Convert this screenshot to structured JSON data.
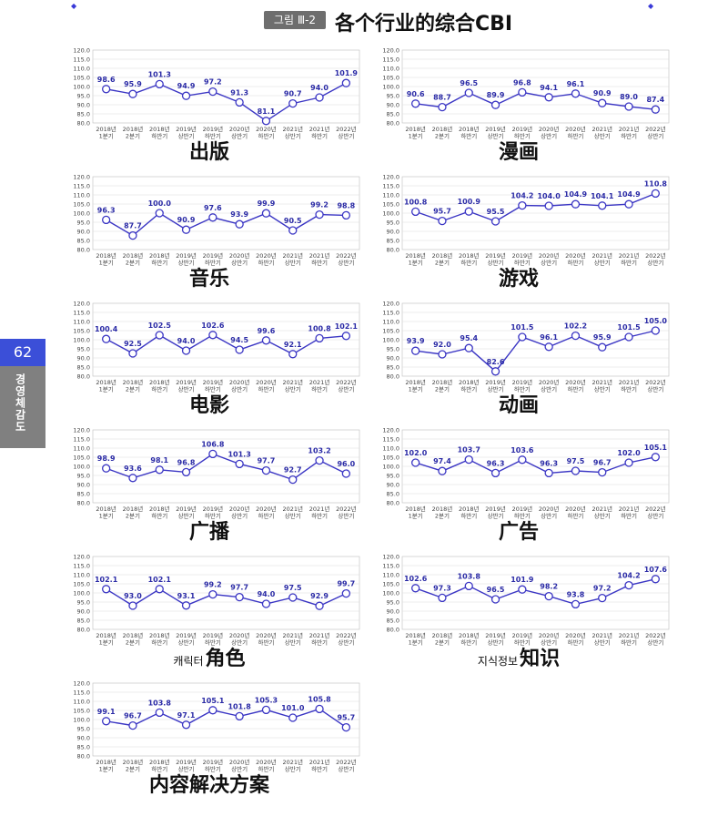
{
  "header": {
    "badge": "그림 Ⅲ-2",
    "title": "各个行业的综合CBI",
    "top_marks": [
      "◆",
      "◆"
    ]
  },
  "side_tab": {
    "page_number": "62",
    "label": "경영체감도",
    "accent_color": "#3b4fd8"
  },
  "style": {
    "line_color": "#3b36c4",
    "marker_fill": "#ffffff",
    "grid_color": "#dcdcdc"
  },
  "chart_data": [
    {
      "type": "line",
      "title": "出版",
      "title_prefix": "",
      "categories": [
        "2018년 1분기",
        "2018년 2분기",
        "2018년 하반기",
        "2019년 상반기",
        "2019년 하반기",
        "2020년 상반기",
        "2020년 하반기",
        "2021년 상반기",
        "2021년 하반기",
        "2022년 상반기"
      ],
      "values": [
        98.6,
        95.9,
        101.3,
        94.9,
        97.2,
        91.3,
        81.1,
        90.7,
        94.0,
        101.9
      ],
      "labels": [
        "98.6",
        "95.9",
        "101.3",
        "94.9",
        "97.2",
        "91.3",
        "81.1",
        "90.7",
        "94.0",
        "101.9"
      ],
      "ylim": [
        80,
        120
      ],
      "yticks": [
        "80.0",
        "85.0",
        "90.0",
        "95.0",
        "100.0",
        "105.0",
        "110.0",
        "115.0",
        "120.0"
      ],
      "grid": true
    },
    {
      "type": "line",
      "title": "漫画",
      "title_prefix": "",
      "categories": [
        "2018년 1분기",
        "2018년 2분기",
        "2018년 하반기",
        "2019년 상반기",
        "2019년 하반기",
        "2020년 상반기",
        "2020년 하반기",
        "2021년 상반기",
        "2021년 하반기",
        "2022년 상반기"
      ],
      "values": [
        90.6,
        88.7,
        96.5,
        89.9,
        96.8,
        94.1,
        96.1,
        90.9,
        89.0,
        87.4
      ],
      "labels": [
        "90.6",
        "88.7",
        "96.5",
        "89.9",
        "96.8",
        "94.1",
        "96.1",
        "90.9",
        "89.0",
        "87.4"
      ],
      "ylim": [
        80,
        120
      ],
      "yticks": [
        "80.0",
        "85.0",
        "90.0",
        "95.0",
        "100.0",
        "105.0",
        "110.0",
        "115.0",
        "120.0"
      ],
      "grid": true
    },
    {
      "type": "line",
      "title": "音乐",
      "title_prefix": "",
      "categories": [
        "2018년 1분기",
        "2018년 2분기",
        "2018년 하반기",
        "2019년 상반기",
        "2019년 하반기",
        "2020년 상반기",
        "2020년 하반기",
        "2021년 상반기",
        "2021년 하반기",
        "2022년 상반기"
      ],
      "values": [
        96.3,
        87.7,
        100.0,
        90.9,
        97.6,
        93.9,
        99.9,
        90.5,
        99.2,
        98.8
      ],
      "labels": [
        "96.3",
        "87.7",
        "100.0",
        "90.9",
        "97.6",
        "93.9",
        "99.9",
        "90.5",
        "99.2",
        "98.8"
      ],
      "ylim": [
        80,
        120
      ],
      "yticks": [
        "80.0",
        "85.0",
        "90.0",
        "95.0",
        "100.0",
        "105.0",
        "110.0",
        "115.0",
        "120.0"
      ],
      "grid": true
    },
    {
      "type": "line",
      "title": "游戏",
      "title_prefix": "",
      "categories": [
        "2018년 1분기",
        "2018년 2분기",
        "2018년 하반기",
        "2019년 상반기",
        "2019년 하반기",
        "2020년 상반기",
        "2020년 하반기",
        "2021년 상반기",
        "2021년 하반기",
        "2022년 상반기"
      ],
      "values": [
        100.8,
        95.7,
        100.9,
        95.5,
        104.2,
        104.0,
        104.9,
        104.1,
        104.9,
        110.8
      ],
      "labels": [
        "100.8",
        "95.7",
        "100.9",
        "95.5",
        "104.2",
        "104.0",
        "104.9",
        "104.1",
        "104.9",
        "110.8"
      ],
      "ylim": [
        80,
        120
      ],
      "yticks": [
        "80.0",
        "85.0",
        "90.0",
        "95.0",
        "100.0",
        "105.0",
        "110.0",
        "115.0",
        "120.0"
      ],
      "grid": true
    },
    {
      "type": "line",
      "title": "电影",
      "title_prefix": "",
      "categories": [
        "2018년 1분기",
        "2018년 2분기",
        "2018년 하반기",
        "2019년 상반기",
        "2019년 하반기",
        "2020년 상반기",
        "2020년 하반기",
        "2021년 상반기",
        "2021년 하반기",
        "2022년 상반기"
      ],
      "values": [
        100.4,
        92.5,
        102.5,
        94.0,
        102.6,
        94.5,
        99.6,
        92.1,
        100.8,
        102.1
      ],
      "labels": [
        "100.4",
        "92.5",
        "102.5",
        "94.0",
        "102.6",
        "94.5",
        "99.6",
        "92.1",
        "100.8",
        "102.1"
      ],
      "ylim": [
        80,
        120
      ],
      "yticks": [
        "80.0",
        "85.0",
        "90.0",
        "95.0",
        "100.0",
        "105.0",
        "110.0",
        "115.0",
        "120.0"
      ],
      "grid": true
    },
    {
      "type": "line",
      "title": "动画",
      "title_prefix": "",
      "categories": [
        "2018년 1분기",
        "2018년 2분기",
        "2018년 하반기",
        "2019년 상반기",
        "2019년 하반기",
        "2020년 상반기",
        "2020년 하반기",
        "2021년 상반기",
        "2021년 하반기",
        "2022년 상반기"
      ],
      "values": [
        93.9,
        92.0,
        95.4,
        82.6,
        101.5,
        96.1,
        102.2,
        95.9,
        101.5,
        105.0
      ],
      "labels": [
        "93.9",
        "92.0",
        "95.4",
        "82.6",
        "101.5",
        "96.1",
        "102.2",
        "95.9",
        "101.5",
        "105.0"
      ],
      "ylim": [
        80,
        120
      ],
      "yticks": [
        "80.0",
        "85.0",
        "90.0",
        "95.0",
        "100.0",
        "105.0",
        "110.0",
        "115.0",
        "120.0"
      ],
      "grid": true
    },
    {
      "type": "line",
      "title": "广播",
      "title_prefix": "",
      "categories": [
        "2018년 1분기",
        "2018년 2분기",
        "2018년 하반기",
        "2019년 상반기",
        "2019년 하반기",
        "2020년 상반기",
        "2020년 하반기",
        "2021년 상반기",
        "2021년 하반기",
        "2022년 상반기"
      ],
      "values": [
        98.9,
        93.6,
        98.1,
        96.8,
        106.8,
        101.3,
        97.7,
        92.7,
        103.2,
        96.0
      ],
      "labels": [
        "98.9",
        "93.6",
        "98.1",
        "96.8",
        "106.8",
        "101.3",
        "97.7",
        "92.7",
        "103.2",
        "96.0"
      ],
      "ylim": [
        80,
        120
      ],
      "yticks": [
        "80.0",
        "85.0",
        "90.0",
        "95.0",
        "100.0",
        "105.0",
        "110.0",
        "115.0",
        "120.0"
      ],
      "grid": true
    },
    {
      "type": "line",
      "title": "广告",
      "title_prefix": "",
      "categories": [
        "2018년 1분기",
        "2018년 2분기",
        "2018년 하반기",
        "2019년 상반기",
        "2019년 하반기",
        "2020년 상반기",
        "2020년 하반기",
        "2021년 상반기",
        "2021년 하반기",
        "2022년 상반기"
      ],
      "values": [
        102.0,
        97.4,
        103.7,
        96.3,
        103.6,
        96.3,
        97.5,
        96.7,
        102.0,
        105.1
      ],
      "labels": [
        "102.0",
        "97.4",
        "103.7",
        "96.3",
        "103.6",
        "96.3",
        "97.5",
        "96.7",
        "102.0",
        "105.1"
      ],
      "ylim": [
        80,
        120
      ],
      "yticks": [
        "80.0",
        "85.0",
        "90.0",
        "95.0",
        "100.0",
        "105.0",
        "110.0",
        "115.0",
        "120.0"
      ],
      "grid": true
    },
    {
      "type": "line",
      "title": "角色",
      "title_prefix": "캐릭터",
      "categories": [
        "2018년 1분기",
        "2018년 2분기",
        "2018년 하반기",
        "2019년 상반기",
        "2019년 하반기",
        "2020년 상반기",
        "2020년 하반기",
        "2021년 상반기",
        "2021년 하반기",
        "2022년 상반기"
      ],
      "values": [
        102.1,
        93.0,
        102.1,
        93.1,
        99.2,
        97.7,
        94.0,
        97.5,
        92.9,
        99.7
      ],
      "labels": [
        "102.1",
        "93.0",
        "102.1",
        "93.1",
        "99.2",
        "97.7",
        "94.0",
        "97.5",
        "92.9",
        "99.7"
      ],
      "ylim": [
        80,
        120
      ],
      "yticks": [
        "80.0",
        "85.0",
        "90.0",
        "95.0",
        "100.0",
        "105.0",
        "110.0",
        "115.0",
        "120.0"
      ],
      "grid": true
    },
    {
      "type": "line",
      "title": "知识",
      "title_prefix": "지식정보",
      "categories": [
        "2018년 1분기",
        "2018년 2분기",
        "2018년 하반기",
        "2019년 상반기",
        "2019년 하반기",
        "2020년 상반기",
        "2020년 하반기",
        "2021년 상반기",
        "2021년 하반기",
        "2022년 상반기"
      ],
      "values": [
        102.6,
        97.3,
        103.8,
        96.5,
        101.9,
        98.2,
        93.8,
        97.2,
        104.2,
        107.6
      ],
      "labels": [
        "102.6",
        "97.3",
        "103.8",
        "96.5",
        "101.9",
        "98.2",
        "93.8",
        "97.2",
        "104.2",
        "107.6"
      ],
      "ylim": [
        80,
        120
      ],
      "yticks": [
        "80.0",
        "85.0",
        "90.0",
        "95.0",
        "100.0",
        "105.0",
        "110.0",
        "115.0",
        "120.0"
      ],
      "grid": true
    },
    {
      "type": "line",
      "title": "内容解决方案",
      "title_prefix": "",
      "categories": [
        "2018년 1분기",
        "2018년 2분기",
        "2018년 하반기",
        "2019년 상반기",
        "2019년 하반기",
        "2020년 상반기",
        "2020년 하반기",
        "2021년 상반기",
        "2021년 하반기",
        "2022년 상반기"
      ],
      "values": [
        99.1,
        96.7,
        103.8,
        97.1,
        105.1,
        101.8,
        105.3,
        101.0,
        105.8,
        95.7
      ],
      "labels": [
        "99.1",
        "96.7",
        "103.8",
        "97.1",
        "105.1",
        "101.8",
        "105.3",
        "101.0",
        "105.8",
        "95.7"
      ],
      "ylim": [
        80,
        120
      ],
      "yticks": [
        "80.0",
        "85.0",
        "90.0",
        "95.0",
        "100.0",
        "105.0",
        "110.0",
        "115.0",
        "120.0"
      ],
      "grid": true
    }
  ]
}
